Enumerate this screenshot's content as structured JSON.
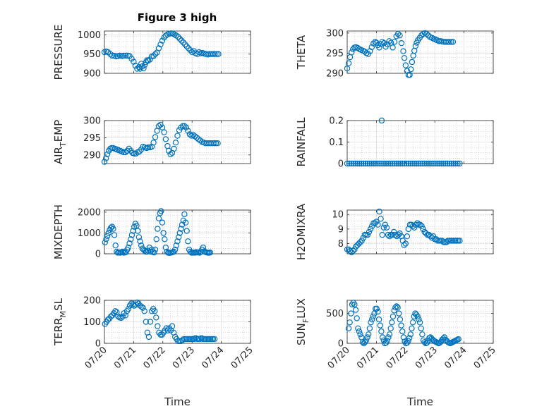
{
  "figure_title": "Figure 3 high",
  "colors": {
    "marker": "#0072BD",
    "axis": "#262626",
    "grid": "#d9d9d9"
  },
  "chart_data": [
    {
      "type": "scatter",
      "title": "Figure 3 high",
      "ylabel": "PRESSURE",
      "xlabel": "",
      "xlim": [
        0,
        5
      ],
      "ylim": [
        900,
        1010
      ],
      "yticks": [
        900,
        950,
        1000
      ],
      "grid": true,
      "x": [
        0.0,
        0.06,
        0.12,
        0.2,
        0.26,
        0.33,
        0.4,
        0.46,
        0.53,
        0.6,
        0.66,
        0.73,
        0.8,
        0.86,
        0.93,
        1.0,
        1.06,
        1.12,
        1.18,
        1.22,
        1.26,
        1.3,
        1.34,
        1.38,
        1.42,
        1.46,
        1.5,
        1.56,
        1.62,
        1.68,
        1.74,
        1.8,
        1.86,
        1.92,
        1.98,
        2.04,
        2.1,
        2.16,
        2.22,
        2.28,
        2.34,
        2.4,
        2.46,
        2.52,
        2.58,
        2.64,
        2.7,
        2.76,
        2.82,
        2.88,
        2.94,
        3.0,
        3.06,
        3.12,
        3.18,
        3.24,
        3.3,
        3.36,
        3.42,
        3.48,
        3.54,
        3.6,
        3.66,
        3.72,
        3.78,
        3.84,
        3.9
      ],
      "y": [
        955,
        957,
        955,
        950,
        946,
        946,
        944,
        945,
        946,
        945,
        946,
        946,
        946,
        945,
        938,
        930,
        920,
        912,
        916,
        912,
        925,
        918,
        913,
        922,
        929,
        934,
        933,
        936,
        944,
        945,
        950,
        954,
        965,
        975,
        985,
        993,
        998,
        1001,
        1003,
        1004,
        1003,
        1001,
        998,
        995,
        990,
        985,
        980,
        975,
        970,
        965,
        960,
        955,
        958,
        952,
        950,
        955,
        952,
        953,
        951,
        950,
        949,
        950,
        950,
        950,
        950,
        950,
        950
      ]
    },
    {
      "type": "scatter",
      "ylabel": "THETA",
      "xlabel": "",
      "xlim": [
        0,
        5
      ],
      "ylim": [
        290,
        300.5
      ],
      "yticks": [
        290,
        295,
        300
      ],
      "grid": true,
      "x": [
        0.0,
        0.05,
        0.1,
        0.15,
        0.2,
        0.25,
        0.3,
        0.36,
        0.42,
        0.48,
        0.54,
        0.6,
        0.66,
        0.72,
        0.78,
        0.84,
        0.9,
        0.96,
        1.0,
        1.05,
        1.1,
        1.15,
        1.2,
        1.26,
        1.32,
        1.38,
        1.44,
        1.5,
        1.56,
        1.62,
        1.68,
        1.74,
        1.8,
        1.86,
        1.92,
        1.96,
        2.0,
        2.05,
        2.1,
        2.14,
        2.18,
        2.22,
        2.26,
        2.3,
        2.34,
        2.38,
        2.42,
        2.48,
        2.54,
        2.6,
        2.66,
        2.72,
        2.78,
        2.84,
        2.9,
        2.96,
        3.02,
        3.08,
        3.14,
        3.2,
        3.26,
        3.32,
        3.38,
        3.44,
        3.5,
        3.56,
        3.62
      ],
      "y": [
        291.2,
        292.5,
        294.0,
        295.2,
        296.0,
        296.4,
        296.5,
        296.3,
        296.0,
        295.8,
        295.6,
        295.4,
        295.0,
        294.8,
        295.5,
        296.5,
        297.4,
        297.8,
        297.6,
        297.0,
        296.4,
        297.3,
        297.8,
        297.5,
        296.6,
        297.2,
        298.0,
        297.6,
        296.4,
        297.8,
        299.2,
        299.8,
        299.4,
        297.5,
        295.5,
        293.8,
        292.0,
        290.6,
        289.6,
        289.6,
        291.0,
        292.8,
        294.4,
        295.6,
        296.8,
        297.6,
        298.2,
        298.8,
        299.4,
        299.8,
        300.0,
        299.8,
        299.4,
        299.0,
        298.8,
        298.6,
        298.4,
        298.2,
        298.0,
        298.0,
        297.9,
        297.8,
        297.8,
        297.8,
        297.8,
        297.8,
        297.8
      ]
    },
    {
      "type": "scatter",
      "ylabel": "AIR_TEMP",
      "xlabel": "",
      "xlim": [
        0,
        5
      ],
      "ylim": [
        287.5,
        300
      ],
      "yticks": [
        290,
        295,
        300
      ],
      "grid": true,
      "x": [
        0.0,
        0.05,
        0.1,
        0.15,
        0.2,
        0.25,
        0.3,
        0.36,
        0.42,
        0.48,
        0.54,
        0.6,
        0.66,
        0.72,
        0.78,
        0.84,
        0.9,
        0.96,
        1.02,
        1.08,
        1.14,
        1.2,
        1.26,
        1.32,
        1.38,
        1.44,
        1.5,
        1.56,
        1.62,
        1.68,
        1.74,
        1.8,
        1.86,
        1.92,
        1.98,
        2.04,
        2.1,
        2.16,
        2.2,
        2.26,
        2.32,
        2.38,
        2.44,
        2.5,
        2.56,
        2.62,
        2.68,
        2.74,
        2.8,
        2.86,
        2.92,
        2.98,
        3.04,
        3.1,
        3.16,
        3.22,
        3.28,
        3.34,
        3.4,
        3.46,
        3.52,
        3.58,
        3.64,
        3.7,
        3.76,
        3.82,
        3.88
      ],
      "y": [
        288.0,
        289.0,
        290.2,
        291.2,
        291.8,
        292.0,
        292.0,
        291.8,
        291.6,
        291.4,
        291.2,
        291.0,
        290.8,
        290.8,
        291.2,
        291.8,
        291.2,
        290.6,
        290.4,
        290.4,
        290.8,
        291.0,
        291.6,
        292.4,
        292.2,
        292.0,
        292.2,
        292.2,
        292.4,
        293.6,
        295.2,
        297.0,
        298.4,
        298.8,
        298.0,
        296.6,
        294.6,
        292.6,
        291.2,
        290.2,
        290.6,
        291.8,
        293.6,
        295.6,
        297.2,
        298.0,
        298.4,
        298.4,
        298.0,
        297.0,
        296.0,
        295.6,
        295.8,
        295.4,
        295.0,
        294.6,
        294.2,
        293.8,
        293.6,
        293.4,
        293.4,
        293.4,
        293.4,
        293.4,
        293.4,
        293.4,
        293.4
      ]
    },
    {
      "type": "scatter",
      "ylabel": "RAINFALL",
      "xlabel": "",
      "xlim": [
        0,
        5
      ],
      "ylim": [
        0,
        0.2
      ],
      "yticks": [
        0,
        0.1,
        0.2
      ],
      "grid": true,
      "x": [
        0.0,
        0.07,
        0.14,
        0.21,
        0.28,
        0.35,
        0.42,
        0.49,
        0.56,
        0.63,
        0.7,
        0.77,
        0.84,
        0.91,
        0.98,
        1.05,
        1.12,
        1.19,
        1.26,
        1.33,
        1.4,
        1.47,
        1.54,
        1.61,
        1.68,
        1.75,
        1.82,
        1.89,
        1.96,
        2.03,
        2.1,
        2.17,
        2.24,
        2.31,
        2.38,
        2.45,
        2.52,
        2.59,
        2.66,
        2.73,
        2.8,
        2.87,
        2.94,
        3.01,
        3.08,
        3.15,
        3.22,
        3.29,
        3.36,
        3.43,
        3.5,
        3.57,
        3.64,
        3.71,
        3.78,
        3.85,
        1.18
      ],
      "y": [
        0,
        0,
        0,
        0,
        0,
        0,
        0,
        0,
        0,
        0,
        0,
        0,
        0,
        0,
        0,
        0,
        0,
        0,
        0,
        0,
        0,
        0,
        0,
        0,
        0,
        0,
        0,
        0,
        0,
        0,
        0,
        0,
        0,
        0,
        0,
        0,
        0,
        0,
        0,
        0,
        0,
        0,
        0,
        0,
        0,
        0,
        0,
        0,
        0,
        0,
        0,
        0,
        0,
        0,
        0,
        0,
        0.2
      ]
    },
    {
      "type": "scatter",
      "ylabel": "MIXDEPTH",
      "xlabel": "",
      "xlim": [
        0,
        5
      ],
      "ylim": [
        0,
        2100
      ],
      "yticks": [
        0,
        1000,
        2000
      ],
      "grid": true,
      "x": [
        0.02,
        0.06,
        0.1,
        0.14,
        0.18,
        0.22,
        0.26,
        0.3,
        0.34,
        0.38,
        0.42,
        0.46,
        0.5,
        0.54,
        0.58,
        0.62,
        0.66,
        0.7,
        0.74,
        0.78,
        0.82,
        0.86,
        0.9,
        0.94,
        0.98,
        1.02,
        1.06,
        1.1,
        1.14,
        1.18,
        1.22,
        1.26,
        1.3,
        1.34,
        1.38,
        1.42,
        1.46,
        1.5,
        1.54,
        1.58,
        1.62,
        1.66,
        1.7,
        1.74,
        1.78,
        1.82,
        1.86,
        1.9,
        1.94,
        1.98,
        2.02,
        2.06,
        2.1,
        2.14,
        2.18,
        2.22,
        2.26,
        2.3,
        2.34,
        2.38,
        2.42,
        2.46,
        2.5,
        2.54,
        2.58,
        2.62,
        2.66,
        2.7,
        2.74,
        2.78,
        2.82,
        2.86,
        2.9,
        2.94,
        2.98,
        3.02,
        3.06,
        3.1,
        3.14,
        3.18,
        3.22,
        3.26,
        3.3,
        3.34,
        3.38,
        3.42,
        3.46,
        3.5,
        3.54,
        3.58,
        3.62
      ],
      "y": [
        550,
        700,
        850,
        1000,
        1150,
        1250,
        1300,
        1200,
        900,
        400,
        100,
        50,
        60,
        50,
        80,
        100,
        50,
        60,
        80,
        200,
        300,
        500,
        700,
        900,
        1100,
        1300,
        1450,
        1350,
        1100,
        800,
        600,
        400,
        250,
        200,
        150,
        100,
        100,
        150,
        300,
        100,
        200,
        80,
        60,
        200,
        700,
        1200,
        1700,
        1950,
        2050,
        1500,
        1000,
        700,
        300,
        100,
        50,
        40,
        50,
        60,
        80,
        100,
        200,
        400,
        600,
        800,
        1000,
        1200,
        1400,
        1600,
        1900,
        1500,
        1100,
        600,
        200,
        100,
        50,
        50,
        60,
        50,
        80,
        60,
        70,
        50,
        100,
        200,
        300,
        120,
        80,
        60,
        50,
        50,
        60
      ]
    },
    {
      "type": "scatter",
      "ylabel": "H2OMIXRA",
      "xlabel": "",
      "xlim": [
        0,
        5
      ],
      "ylim": [
        7.3,
        10.3
      ],
      "yticks": [
        8,
        9,
        10
      ],
      "grid": true,
      "x": [
        0.0,
        0.05,
        0.1,
        0.15,
        0.2,
        0.25,
        0.3,
        0.35,
        0.4,
        0.45,
        0.5,
        0.55,
        0.6,
        0.65,
        0.7,
        0.75,
        0.8,
        0.85,
        0.9,
        0.95,
        1.0,
        1.05,
        1.1,
        1.15,
        1.2,
        1.25,
        1.3,
        1.35,
        1.4,
        1.45,
        1.5,
        1.55,
        1.6,
        1.65,
        1.7,
        1.75,
        1.8,
        1.85,
        1.9,
        1.95,
        2.0,
        2.05,
        2.1,
        2.15,
        2.2,
        2.25,
        2.3,
        2.35,
        2.4,
        2.45,
        2.5,
        2.55,
        2.6,
        2.65,
        2.7,
        2.75,
        2.8,
        2.85,
        2.9,
        2.95,
        3.0,
        3.05,
        3.1,
        3.15,
        3.2,
        3.25,
        3.3,
        3.35,
        3.4,
        3.45,
        3.5,
        3.55,
        3.6,
        3.65,
        3.7,
        3.75,
        3.8,
        3.85
      ],
      "y": [
        7.6,
        7.6,
        7.5,
        7.4,
        7.5,
        7.6,
        7.8,
        7.9,
        8.0,
        8.1,
        8.2,
        8.4,
        8.6,
        8.6,
        8.6,
        8.8,
        9.0,
        9.2,
        9.4,
        9.4,
        9.5,
        9.3,
        10.2,
        9.7,
        8.6,
        9.1,
        9.3,
        9.1,
        8.6,
        8.5,
        8.6,
        8.6,
        8.8,
        8.6,
        8.5,
        8.6,
        8.7,
        8.5,
        8.2,
        7.9,
        8.0,
        8.5,
        9.0,
        9.3,
        9.3,
        9.2,
        9.1,
        9.3,
        9.4,
        9.3,
        9.3,
        9.2,
        9.0,
        8.8,
        8.7,
        8.6,
        8.6,
        8.5,
        8.4,
        8.5,
        8.3,
        8.3,
        8.2,
        8.2,
        8.2,
        8.2,
        8.1,
        8.1,
        8.1,
        8.2,
        8.2,
        8.2,
        8.2,
        8.2,
        8.2,
        8.2,
        8.2,
        8.2
      ]
    },
    {
      "type": "scatter",
      "ylabel": "TERR_MSL",
      "xlabel": "Time",
      "xlim": [
        0,
        5
      ],
      "ylim": [
        0,
        200
      ],
      "yticks": [
        0,
        100,
        200
      ],
      "xtick_labels": [
        "07/20",
        "07/21",
        "07/22",
        "07/23",
        "07/24",
        "07/25"
      ],
      "grid": true,
      "x": [
        0.02,
        0.07,
        0.12,
        0.17,
        0.22,
        0.27,
        0.32,
        0.37,
        0.42,
        0.47,
        0.52,
        0.57,
        0.62,
        0.67,
        0.72,
        0.77,
        0.82,
        0.87,
        0.92,
        0.97,
        1.02,
        1.07,
        1.12,
        1.17,
        1.22,
        1.27,
        1.32,
        1.37,
        1.42,
        1.47,
        1.52,
        1.57,
        1.62,
        1.67,
        1.72,
        1.77,
        1.82,
        1.87,
        1.92,
        1.97,
        2.02,
        2.07,
        2.12,
        2.17,
        2.22,
        2.27,
        2.32,
        2.37,
        2.42,
        2.47,
        2.52,
        2.57,
        2.62,
        2.67,
        2.72,
        2.77,
        2.82,
        2.87,
        2.92,
        2.97,
        3.02,
        3.07,
        3.12,
        3.17,
        3.22,
        3.27,
        3.32,
        3.37,
        3.42,
        3.47,
        3.52,
        3.57,
        3.62,
        3.67,
        3.72,
        3.77
      ],
      "y": [
        90,
        100,
        110,
        115,
        125,
        130,
        140,
        150,
        145,
        125,
        120,
        118,
        125,
        140,
        130,
        150,
        160,
        175,
        185,
        180,
        175,
        180,
        190,
        185,
        175,
        170,
        165,
        150,
        100,
        50,
        30,
        100,
        150,
        160,
        150,
        120,
        80,
        50,
        40,
        40,
        50,
        60,
        70,
        60,
        70,
        60,
        80,
        50,
        30,
        20,
        10,
        10,
        10,
        15,
        20,
        20,
        20,
        20,
        20,
        20,
        20,
        20,
        25,
        20,
        20,
        20,
        25,
        20,
        20,
        20,
        20,
        20,
        20,
        20,
        20,
        20
      ]
    },
    {
      "type": "scatter",
      "ylabel": "SUN_FLUX",
      "xlabel": "Time",
      "xlim": [
        0,
        5
      ],
      "ylim": [
        0,
        720
      ],
      "yticks": [
        0,
        500
      ],
      "xtick_labels": [
        "07/20",
        "07/21",
        "07/22",
        "07/23",
        "07/24",
        "07/25"
      ],
      "grid": true,
      "x": [
        0.05,
        0.09,
        0.13,
        0.17,
        0.21,
        0.25,
        0.29,
        0.33,
        0.37,
        0.41,
        0.45,
        0.49,
        0.53,
        0.57,
        0.61,
        0.65,
        0.69,
        0.73,
        0.77,
        0.81,
        0.85,
        0.89,
        0.93,
        0.97,
        1.01,
        1.05,
        1.09,
        1.13,
        1.17,
        1.21,
        1.25,
        1.29,
        1.33,
        1.37,
        1.41,
        1.45,
        1.49,
        1.53,
        1.57,
        1.61,
        1.65,
        1.69,
        1.73,
        1.77,
        1.81,
        1.85,
        1.89,
        1.93,
        1.97,
        2.01,
        2.05,
        2.09,
        2.13,
        2.17,
        2.21,
        2.25,
        2.29,
        2.33,
        2.37,
        2.41,
        2.45,
        2.49,
        2.53,
        2.57,
        2.61,
        2.65,
        2.69,
        2.73,
        2.77,
        2.81,
        2.85,
        2.89,
        2.93,
        2.97,
        3.01,
        3.05,
        3.09,
        3.13,
        3.17,
        3.21,
        3.25,
        3.29,
        3.33,
        3.37,
        3.41,
        3.45,
        3.49,
        3.53,
        3.57,
        3.61,
        3.65,
        3.69,
        3.73,
        3.77,
        3.81
      ],
      "y": [
        250,
        350,
        500,
        650,
        680,
        650,
        560,
        420,
        250,
        200,
        150,
        100,
        20,
        0,
        20,
        50,
        100,
        150,
        250,
        350,
        400,
        450,
        500,
        580,
        580,
        530,
        400,
        300,
        200,
        100,
        50,
        0,
        10,
        40,
        100,
        150,
        250,
        350,
        450,
        550,
        600,
        620,
        600,
        500,
        400,
        300,
        200,
        100,
        30,
        0,
        10,
        40,
        90,
        150,
        250,
        350,
        450,
        500,
        480,
        450,
        400,
        350,
        250,
        150,
        50,
        20,
        0,
        10,
        40,
        90,
        100,
        80,
        60,
        40,
        30,
        20,
        10,
        0,
        10,
        30,
        60,
        80,
        100,
        60,
        40,
        20,
        10,
        0,
        10,
        20,
        30,
        40,
        50,
        60,
        70
      ]
    }
  ]
}
